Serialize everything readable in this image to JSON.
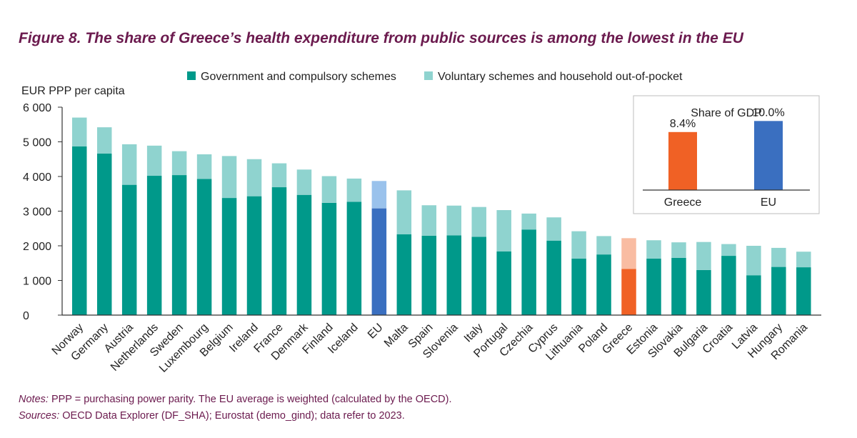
{
  "title": "Figure 8. The share of Greece’s health expenditure from public sources is among the lowest in the EU",
  "colors": {
    "title": "#6b1a4e",
    "government": "#00998a",
    "voluntary": "#8fd3cf",
    "eu_government": "#3a6fc0",
    "eu_voluntary": "#9ac2ec",
    "greece_government": "#f06125",
    "greece_voluntary": "#f9bca2",
    "axis": "#333333",
    "note_text": "#6b1a4e"
  },
  "chart_data": {
    "type": "bar",
    "stacked": true,
    "ylabel": "EUR PPP per capita",
    "ylim": [
      0,
      6000
    ],
    "yticks": [
      0,
      1000,
      2000,
      3000,
      4000,
      5000,
      6000
    ],
    "ytick_labels": [
      "0",
      "1 000",
      "2 000",
      "3 000",
      "4 000",
      "5 000",
      "6 000"
    ],
    "categories": [
      "Norway",
      "Germany",
      "Austria",
      "Netherlands",
      "Sweden",
      "Luxembourg",
      "Belgium",
      "Ireland",
      "France",
      "Denmark",
      "Finland",
      "Iceland",
      "EU",
      "Malta",
      "Spain",
      "Slovenia",
      "Italy",
      "Portugal",
      "Czechia",
      "Cyprus",
      "Lithuania",
      "Poland",
      "Greece",
      "Estonia",
      "Slovakia",
      "Bulgaria",
      "Croatia",
      "Latvia",
      "Hungary",
      "Romania"
    ],
    "highlight": {
      "EU": "eu",
      "Greece": "greece"
    },
    "series": [
      {
        "name": "Government and compulsory schemes",
        "key": "government",
        "values": [
          4870,
          4660,
          3760,
          4020,
          4040,
          3930,
          3380,
          3430,
          3690,
          3470,
          3240,
          3270,
          3080,
          2330,
          2290,
          2300,
          2260,
          1840,
          2470,
          2150,
          1630,
          1750,
          1330,
          1630,
          1650,
          1300,
          1710,
          1150,
          1390,
          1380
        ]
      },
      {
        "name": "Voluntary schemes and household out-of-pocket",
        "key": "voluntary",
        "values": [
          830,
          760,
          1170,
          870,
          690,
          710,
          1210,
          1070,
          690,
          730,
          770,
          670,
          790,
          1270,
          880,
          860,
          860,
          1190,
          460,
          670,
          790,
          530,
          890,
          530,
          450,
          810,
          340,
          850,
          550,
          450
        ]
      }
    ],
    "inset": {
      "title": "Share of GDP",
      "type": "bar",
      "categories": [
        "Greece",
        "EU"
      ],
      "values": [
        8.4,
        10.0
      ],
      "value_labels": [
        "8.4%",
        "10.0%"
      ],
      "ylim": [
        0,
        12
      ]
    }
  },
  "notes": {
    "notes_label": "Notes:",
    "notes_text": " PPP = purchasing power parity. The EU average is weighted (calculated by the OECD).",
    "sources_label": "Sources:",
    "sources_text": " OECD Data Explorer (DF_SHA); Eurostat (demo_gind); data refer to 2023."
  }
}
